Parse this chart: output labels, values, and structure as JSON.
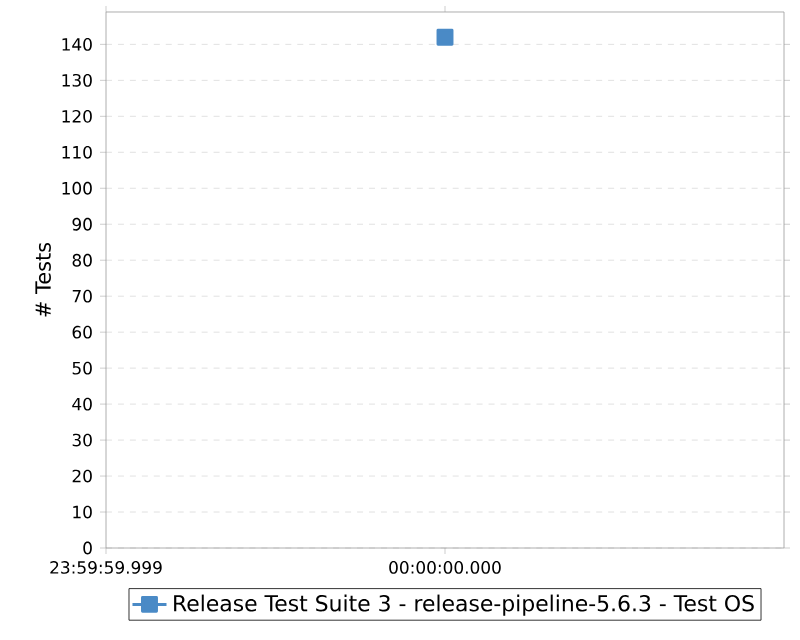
{
  "chart_data": {
    "type": "line",
    "ylabel": "# Tests",
    "categories": [
      "23:59:59.999",
      "00:00:00.000",
      null
    ],
    "series": [
      {
        "name": "Release Test Suite 3 - release-pipeline-5.6.3 - Test OS",
        "color": "#4a8ac6",
        "values": [
          null,
          142,
          null
        ]
      }
    ],
    "ylim": [
      0,
      149
    ],
    "yticks": [
      0,
      10,
      20,
      30,
      40,
      50,
      60,
      70,
      80,
      90,
      100,
      110,
      120,
      130,
      140
    ],
    "grid": "y",
    "legend": "bottom",
    "marker": "square",
    "line_style": "solid"
  }
}
